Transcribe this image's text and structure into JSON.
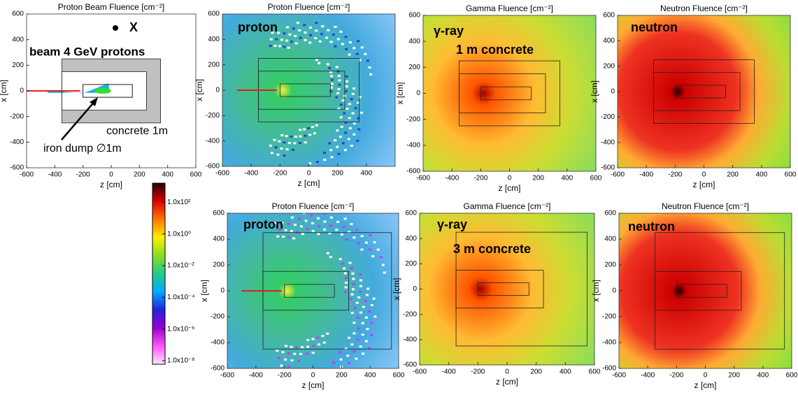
{
  "chart_data": [
    {
      "type": "heatmap",
      "particle": "beam",
      "title": "Proton Beam Fluence [cm⁻²]",
      "xlabel": "z [cm]",
      "ylabel": "x [cm]",
      "xlim": [
        -600,
        600
      ],
      "ylim": [
        -600,
        600
      ],
      "xticks": [
        -600,
        -400,
        -200,
        0,
        200,
        400,
        600
      ],
      "yticks": [
        -600,
        -400,
        -200,
        0,
        200,
        400,
        600
      ],
      "annotations": [
        "X",
        "beam 4 GeV protons",
        "concrete 1m",
        "iron dump ∅1m"
      ]
    },
    {
      "type": "heatmap",
      "particle": "proton",
      "title": "Proton Fluence [cm⁻²]",
      "xlabel": "z [cm]",
      "ylabel": "x [cm]",
      "xlim": [
        -600,
        600
      ],
      "ylim": [
        -600,
        600
      ],
      "xticks": [
        -600,
        -400,
        -200,
        0,
        200,
        400
      ],
      "yticks": [
        -600,
        -400,
        -200,
        0,
        200,
        400,
        600
      ],
      "annotations": [
        "proton"
      ]
    },
    {
      "type": "heatmap",
      "particle": "gamma",
      "title": "Gamma Fluence [cm⁻²]",
      "xlabel": "z [cm]",
      "ylabel": "x [cm]",
      "xlim": [
        -600,
        600
      ],
      "ylim": [
        -600,
        600
      ],
      "xticks": [
        -600,
        -400,
        -200,
        0,
        200,
        400,
        600
      ],
      "yticks": [
        -600,
        -400,
        -200,
        0,
        200,
        400,
        600
      ],
      "annotations": [
        "γ-ray",
        "1 m concrete"
      ]
    },
    {
      "type": "heatmap",
      "particle": "neutron",
      "title": "Neutron Fluence [cm⁻²]",
      "xlabel": "z [cm]",
      "ylabel": "x [cm]",
      "xlim": [
        -600,
        600
      ],
      "ylim": [
        -600,
        600
      ],
      "xticks": [
        -600,
        -400,
        -200,
        0,
        200,
        400,
        600
      ],
      "yticks": [
        -600,
        -400,
        -200,
        0,
        200,
        400,
        600
      ],
      "annotations": [
        "neutron"
      ]
    },
    {
      "type": "heatmap",
      "particle": "proton",
      "title": "Proton Fluence [cm⁻²]",
      "xlabel": "z [cm]",
      "ylabel": "x [cm]",
      "xlim": [
        -600,
        600
      ],
      "ylim": [
        -600,
        600
      ],
      "xticks": [
        -600,
        -400,
        -200,
        0,
        200,
        400,
        600
      ],
      "yticks": [
        -600,
        -400,
        -200,
        0,
        200,
        400,
        600
      ],
      "annotations": [
        "proton"
      ]
    },
    {
      "type": "heatmap",
      "particle": "gamma",
      "title": "Gamma Fluence [cm⁻²]",
      "xlabel": "z [cm]",
      "ylabel": "x [cm]",
      "xlim": [
        -600,
        600
      ],
      "ylim": [
        -600,
        600
      ],
      "xticks": [
        -600,
        -400,
        -200,
        0,
        200,
        400,
        600
      ],
      "yticks": [
        -600,
        -400,
        -200,
        0,
        200,
        400,
        600
      ],
      "annotations": [
        "γ-ray",
        "3 m concrete"
      ]
    },
    {
      "type": "heatmap",
      "particle": "neutron",
      "title": "Neutron Fluence [cm⁻²]",
      "xlabel": "z [cm]",
      "ylabel": "x [cm]",
      "xlim": [
        -600,
        600
      ],
      "ylim": [
        -600,
        600
      ],
      "xticks": [
        -600,
        -400,
        -200,
        0,
        200,
        400,
        600
      ],
      "yticks": [
        -600,
        -400,
        -200,
        0,
        200,
        400,
        600
      ],
      "annotations": [
        "neutron"
      ]
    },
    {
      "type": "colorbar",
      "log": true,
      "ylim": [
        6e-09,
        1600
      ],
      "yticks": [
        {
          "value": 100,
          "label": "1.0x10²"
        },
        {
          "value": 1,
          "label": "1.0x10⁰"
        },
        {
          "value": 0.01,
          "label": "1.0x10⁻²"
        },
        {
          "value": 0.0001,
          "label": "1.0x10⁻⁴"
        },
        {
          "value": 1e-06,
          "label": "1.0x10⁻⁶"
        },
        {
          "value": 1e-08,
          "label": "1.0x10⁻⁸"
        }
      ]
    }
  ]
}
